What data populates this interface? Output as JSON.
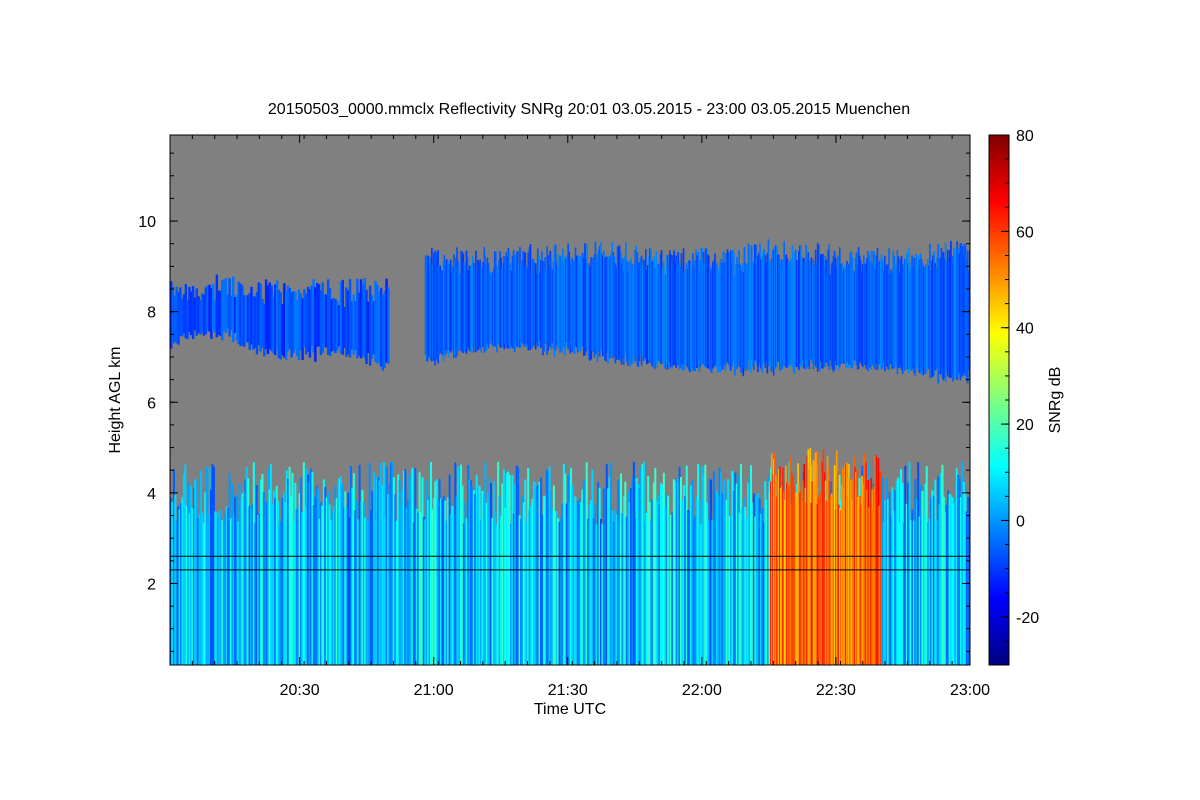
{
  "chart_data": {
    "type": "heatmap",
    "title": "20150503_0000.mmclx Reflectivity SNRg   20:01 03.05.2015 - 23:00 03.05.2015 Muenchen",
    "xlabel": "Time UTC",
    "ylabel": "Height AGL km",
    "xlim": [
      "20:01",
      "23:00"
    ],
    "ylim": [
      0.2,
      11.9
    ],
    "x_ticks": [
      "20:30",
      "21:00",
      "21:30",
      "22:00",
      "22:30",
      "23:00"
    ],
    "y_ticks": [
      "2",
      "4",
      "6",
      "8",
      "10"
    ],
    "colorbar": {
      "label": "SNRg dB",
      "range": [
        -30,
        80
      ],
      "ticks": [
        "-20",
        "0",
        "20",
        "40",
        "60",
        "80"
      ],
      "colormap": "jet",
      "colors": [
        "#00007f",
        "#0000ff",
        "#007fff",
        "#00ffff",
        "#7fff7f",
        "#ffff00",
        "#ff7f00",
        "#ff0000",
        "#7f0000"
      ]
    },
    "background_color": "#808080",
    "layers": [
      {
        "time_start": "20:01",
        "time_end": "20:50",
        "base_km": 7.1,
        "top_km": 8.9,
        "snr_db": -8
      },
      {
        "time_start": "20:58",
        "time_end": "23:00",
        "base_km": 6.8,
        "top_km": 9.6,
        "snr_db": -6
      },
      {
        "time_start": "20:01",
        "time_end": "23:00",
        "base_km": 0.2,
        "top_km": 4.7,
        "snr_db": 5
      },
      {
        "time_start": "22:15",
        "time_end": "22:40",
        "base_km": 0.2,
        "top_km": 5.0,
        "snr_db": 55
      }
    ],
    "boundary_lines": [
      {
        "time_start": "20:01",
        "time_end": "23:00",
        "height_km": 2.3
      },
      {
        "time_start": "20:01",
        "time_end": "23:00",
        "height_km": 2.6
      }
    ]
  }
}
